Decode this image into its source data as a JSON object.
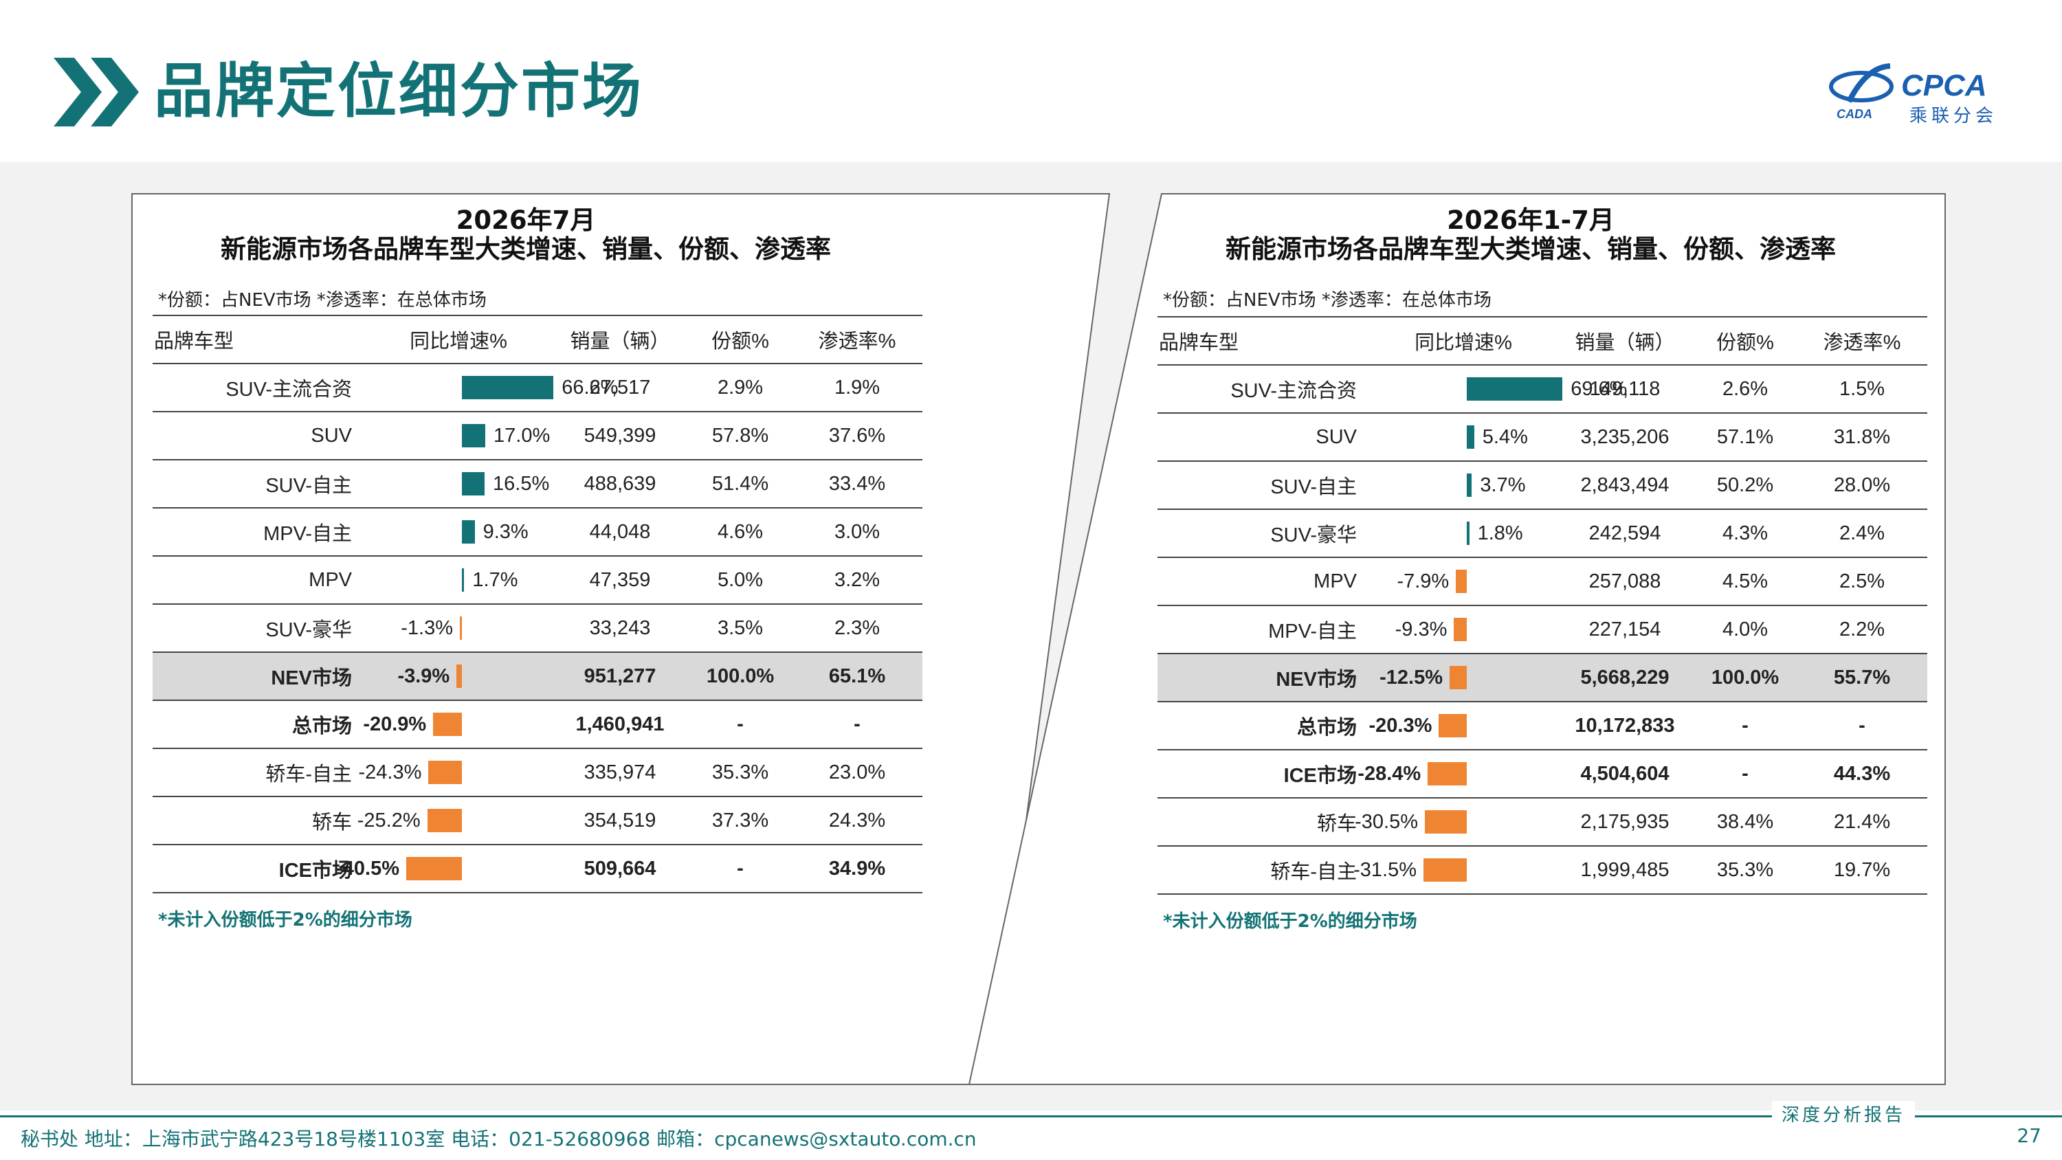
{
  "page": {
    "title": "品牌定位细分市场",
    "page_number": "27"
  },
  "logo": {
    "text": "CPCA",
    "subtitle": "乘联分会",
    "small_text": "CADA"
  },
  "left": {
    "title_line1": "2026年7月",
    "title_line2": "新能源市场各品牌车型大类增速、销量、份额、渗透率",
    "note": "*份额：占NEV市场   *渗透率：在总体市场",
    "headers": [
      "品牌车型",
      "同比增速%",
      "销量（辆）",
      "份额%",
      "渗透率%"
    ],
    "rows": [
      {
        "brand": "SUV-主流合资",
        "growth": 66.6,
        "growth_label": "66.6%",
        "sales": "27,517",
        "share": "2.9%",
        "pen": "1.9%",
        "style": "normal"
      },
      {
        "brand": "SUV",
        "growth": 17.0,
        "growth_label": "17.0%",
        "sales": "549,399",
        "share": "57.8%",
        "pen": "37.6%",
        "style": "normal"
      },
      {
        "brand": "SUV-自主",
        "growth": 16.5,
        "growth_label": "16.5%",
        "sales": "488,639",
        "share": "51.4%",
        "pen": "33.4%",
        "style": "normal"
      },
      {
        "brand": "MPV-自主",
        "growth": 9.3,
        "growth_label": "9.3%",
        "sales": "44,048",
        "share": "4.6%",
        "pen": "3.0%",
        "style": "normal"
      },
      {
        "brand": "MPV",
        "growth": 1.7,
        "growth_label": "1.7%",
        "sales": "47,359",
        "share": "5.0%",
        "pen": "3.2%",
        "style": "normal"
      },
      {
        "brand": "SUV-豪华",
        "growth": -1.3,
        "growth_label": "-1.3%",
        "sales": "33,243",
        "share": "3.5%",
        "pen": "2.3%",
        "style": "normal"
      },
      {
        "brand": "NEV市场",
        "growth": -3.9,
        "growth_label": "-3.9%",
        "sales": "951,277",
        "share": "100.0%",
        "pen": "65.1%",
        "style": "highlight"
      },
      {
        "brand": "总市场",
        "growth": -20.9,
        "growth_label": "-20.9%",
        "sales": "1,460,941",
        "share": "-",
        "pen": "-",
        "style": "bold"
      },
      {
        "brand": "轿车-自主",
        "growth": -24.3,
        "growth_label": "-24.3%",
        "sales": "335,974",
        "share": "35.3%",
        "pen": "23.0%",
        "style": "normal"
      },
      {
        "brand": "轿车",
        "growth": -25.2,
        "growth_label": "-25.2%",
        "sales": "354,519",
        "share": "37.3%",
        "pen": "24.3%",
        "style": "normal"
      },
      {
        "brand": "ICE市场",
        "growth": -40.5,
        "growth_label": "-40.5%",
        "sales": "509,664",
        "share": "-",
        "pen": "34.9%",
        "style": "bold"
      }
    ],
    "footnote": "*未计入份额低于2%的细分市场"
  },
  "right": {
    "title_line1": "2026年1-7月",
    "title_line2": "新能源市场各品牌车型大类增速、销量、份额、渗透率",
    "note": "*份额：占NEV市场   *渗透率：在总体市场",
    "headers": [
      "品牌车型",
      "同比增速%",
      "销量（辆）",
      "份额%",
      "渗透率%"
    ],
    "rows": [
      {
        "brand": "SUV-主流合资",
        "growth": 69.6,
        "growth_label": "69.6%",
        "sales": "149,118",
        "share": "2.6%",
        "pen": "1.5%",
        "style": "normal"
      },
      {
        "brand": "SUV",
        "growth": 5.4,
        "growth_label": "5.4%",
        "sales": "3,235,206",
        "share": "57.1%",
        "pen": "31.8%",
        "style": "normal"
      },
      {
        "brand": "SUV-自主",
        "growth": 3.7,
        "growth_label": "3.7%",
        "sales": "2,843,494",
        "share": "50.2%",
        "pen": "28.0%",
        "style": "normal"
      },
      {
        "brand": "SUV-豪华",
        "growth": 1.8,
        "growth_label": "1.8%",
        "sales": "242,594",
        "share": "4.3%",
        "pen": "2.4%",
        "style": "normal"
      },
      {
        "brand": "MPV",
        "growth": -7.9,
        "growth_label": "-7.9%",
        "sales": "257,088",
        "share": "4.5%",
        "pen": "2.5%",
        "style": "normal"
      },
      {
        "brand": "MPV-自主",
        "growth": -9.3,
        "growth_label": "-9.3%",
        "sales": "227,154",
        "share": "4.0%",
        "pen": "2.2%",
        "style": "normal"
      },
      {
        "brand": "NEV市场",
        "growth": -12.5,
        "growth_label": "-12.5%",
        "sales": "5,668,229",
        "share": "100.0%",
        "pen": "55.7%",
        "style": "highlight"
      },
      {
        "brand": "总市场",
        "growth": -20.3,
        "growth_label": "-20.3%",
        "sales": "10,172,833",
        "share": "-",
        "pen": "-",
        "style": "bold"
      },
      {
        "brand": "ICE市场",
        "growth": -28.4,
        "growth_label": "-28.4%",
        "sales": "4,504,604",
        "share": "-",
        "pen": "44.3%",
        "style": "bold"
      },
      {
        "brand": "轿车",
        "growth": -30.5,
        "growth_label": "-30.5%",
        "sales": "2,175,935",
        "share": "38.4%",
        "pen": "21.4%",
        "style": "normal"
      },
      {
        "brand": "轿车-自主",
        "growth": -31.5,
        "growth_label": "-31.5%",
        "sales": "1,999,485",
        "share": "35.3%",
        "pen": "19.7%",
        "style": "normal"
      }
    ],
    "footnote": "*未计入份额低于2%的细分市场"
  },
  "footer": {
    "text": "秘书处   地址：上海市武宁路423号18号楼1103室  电话：021-52680968   邮箱：cpcanews@sxtauto.com.cn",
    "right": "深度分析报告"
  },
  "colors": {
    "accent": "#137275",
    "positive_bar": "#137275",
    "negative_bar": "#ef8433",
    "highlight_row": "#d9d9d9"
  },
  "icons": [
    "double-chevron-icon",
    "cpca-logo-icon"
  ]
}
